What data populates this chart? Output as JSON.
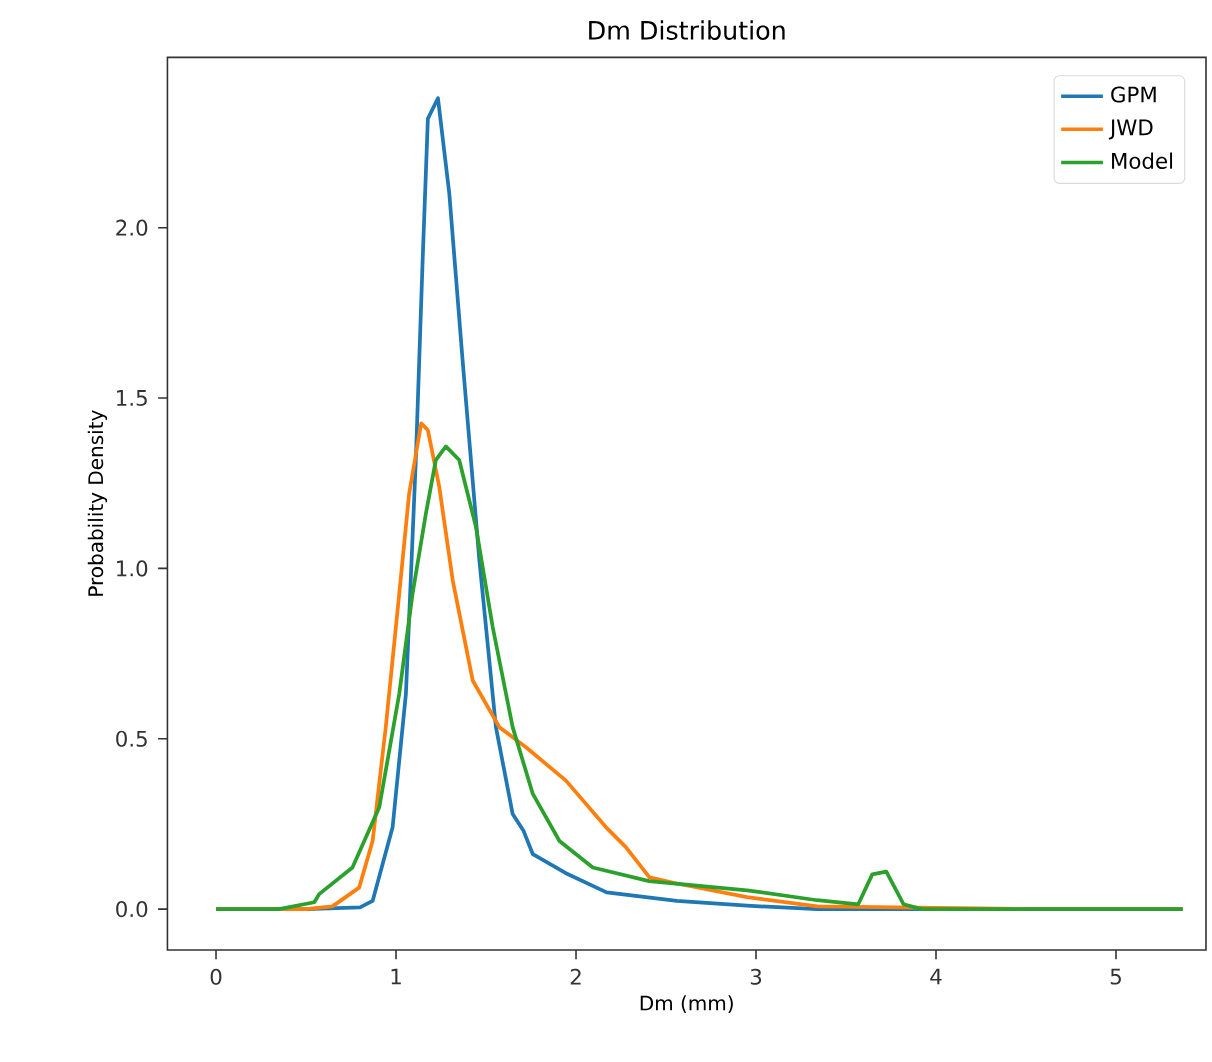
{
  "chart_data": {
    "type": "line",
    "title": "Dm Distribution",
    "xlabel": "Dm (mm)",
    "ylabel": "Probability Density",
    "xlim": [
      -0.27,
      5.5
    ],
    "ylim": [
      -0.12,
      2.5
    ],
    "xticks": [
      0,
      1,
      2,
      3,
      4,
      5
    ],
    "yticks": [
      {
        "value": 0,
        "label": "0.0"
      },
      {
        "value": 0.5,
        "label": "0.5"
      },
      {
        "value": 1,
        "label": "1.0"
      },
      {
        "value": 1.5,
        "label": "1.5"
      },
      {
        "value": 2,
        "label": "2.0"
      }
    ],
    "legend": "top right",
    "grid": false,
    "marker": "none",
    "line_style": "solid",
    "series": [
      {
        "name": "GPM",
        "color": "#1f77b4",
        "x": [
          0,
          0.5,
          0.8,
          0.87,
          0.981,
          1.055,
          1.11,
          1.148,
          1.177,
          1.233,
          1.296,
          1.37,
          1.463,
          1.555,
          1.648,
          1.709,
          1.76,
          1.941,
          2.17,
          2.56,
          2.95,
          3.34,
          4,
          5,
          5.37
        ],
        "values": [
          0,
          0,
          0.005,
          0.024,
          0.24,
          0.632,
          1.318,
          1.906,
          2.32,
          2.38,
          2.1,
          1.61,
          1.024,
          0.534,
          0.279,
          0.229,
          0.161,
          0.106,
          0.049,
          0.024,
          0.01,
          0,
          0,
          0,
          0
        ]
      },
      {
        "name": "JWD",
        "color": "#ff7f0e",
        "x": [
          0,
          0.5,
          0.647,
          0.795,
          0.87,
          0.943,
          1.018,
          1.073,
          1.14,
          1.177,
          1.24,
          1.315,
          1.426,
          1.574,
          1.722,
          1.944,
          2.167,
          2.278,
          2.408,
          2.56,
          2.95,
          3.34,
          3.78,
          4.5,
          5.37
        ],
        "values": [
          0,
          0,
          0.008,
          0.063,
          0.2,
          0.534,
          0.926,
          1.22,
          1.426,
          1.406,
          1.24,
          0.965,
          0.671,
          0.534,
          0.475,
          0.377,
          0.24,
          0.181,
          0.093,
          0.075,
          0.035,
          0.008,
          0.005,
          0,
          0
        ]
      },
      {
        "name": "Model",
        "color": "#2ca02c",
        "x": [
          0,
          0.35,
          0.546,
          0.573,
          0.758,
          0.907,
          1.018,
          1.092,
          1.166,
          1.221,
          1.277,
          1.351,
          1.444,
          1.537,
          1.648,
          1.76,
          1.908,
          2.093,
          2.406,
          2.95,
          3.34,
          3.568,
          3.646,
          3.724,
          3.82,
          3.92,
          4.5,
          5.37
        ],
        "values": [
          0,
          0,
          0.02,
          0.044,
          0.122,
          0.299,
          0.632,
          0.926,
          1.161,
          1.318,
          1.358,
          1.318,
          1.122,
          0.828,
          0.534,
          0.338,
          0.2,
          0.122,
          0.082,
          0.055,
          0.026,
          0.014,
          0.102,
          0.11,
          0.014,
          0,
          0,
          0
        ]
      }
    ]
  }
}
